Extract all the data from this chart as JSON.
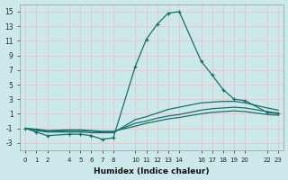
{
  "xlabel": "Humidex (Indice chaleur)",
  "bg_color": "#cce8ea",
  "grid_color": "#e8c8c8",
  "line_color": "#1a6e6a",
  "xlim": [
    -0.5,
    23.5
  ],
  "ylim": [
    -4.0,
    16.0
  ],
  "yticks": [
    -3,
    -1,
    1,
    3,
    5,
    7,
    9,
    11,
    13,
    15
  ],
  "xticks": [
    0,
    1,
    2,
    4,
    5,
    6,
    7,
    8,
    10,
    11,
    12,
    13,
    14,
    16,
    17,
    18,
    19,
    20,
    22,
    23
  ],
  "xtick_labels": [
    "0",
    "1",
    "2",
    "4",
    "5",
    "6",
    "7",
    "8",
    "10",
    "11",
    "12",
    "13",
    "14",
    "16",
    "17",
    "18",
    "19",
    "20",
    "22",
    "23"
  ],
  "lines": [
    {
      "x": [
        0,
        1,
        2,
        4,
        5,
        6,
        7,
        8,
        10,
        11,
        12,
        13,
        14,
        16,
        17,
        18,
        19,
        20,
        22,
        23
      ],
      "y": [
        -1.0,
        -1.5,
        -2.0,
        -1.8,
        -1.8,
        -2.0,
        -2.5,
        -2.3,
        7.5,
        11.2,
        13.3,
        14.8,
        15.0,
        8.2,
        6.3,
        4.3,
        3.0,
        2.8,
        1.2,
        1.0
      ],
      "marker": true
    },
    {
      "x": [
        0,
        1,
        2,
        4,
        5,
        6,
        7,
        8,
        10,
        11,
        12,
        13,
        14,
        16,
        17,
        18,
        19,
        20,
        22,
        23
      ],
      "y": [
        -1.0,
        -1.3,
        -1.5,
        -1.5,
        -1.5,
        -1.6,
        -1.6,
        -1.6,
        0.2,
        0.6,
        1.1,
        1.6,
        1.9,
        2.5,
        2.6,
        2.7,
        2.7,
        2.5,
        1.8,
        1.5
      ],
      "marker": false
    },
    {
      "x": [
        0,
        1,
        2,
        4,
        5,
        6,
        7,
        8,
        10,
        11,
        12,
        13,
        14,
        16,
        17,
        18,
        19,
        20,
        22,
        23
      ],
      "y": [
        -1.0,
        -1.2,
        -1.4,
        -1.3,
        -1.3,
        -1.4,
        -1.5,
        -1.5,
        -0.3,
        0.0,
        0.4,
        0.7,
        0.9,
        1.5,
        1.7,
        1.8,
        1.9,
        1.8,
        1.3,
        1.1
      ],
      "marker": false
    },
    {
      "x": [
        0,
        1,
        2,
        4,
        5,
        6,
        7,
        8,
        10,
        11,
        12,
        13,
        14,
        16,
        17,
        18,
        19,
        20,
        22,
        23
      ],
      "y": [
        -1.0,
        -1.1,
        -1.3,
        -1.2,
        -1.2,
        -1.3,
        -1.4,
        -1.4,
        -0.7,
        -0.3,
        0.0,
        0.3,
        0.5,
        1.0,
        1.2,
        1.3,
        1.4,
        1.3,
        0.9,
        0.8
      ],
      "marker": false
    }
  ]
}
